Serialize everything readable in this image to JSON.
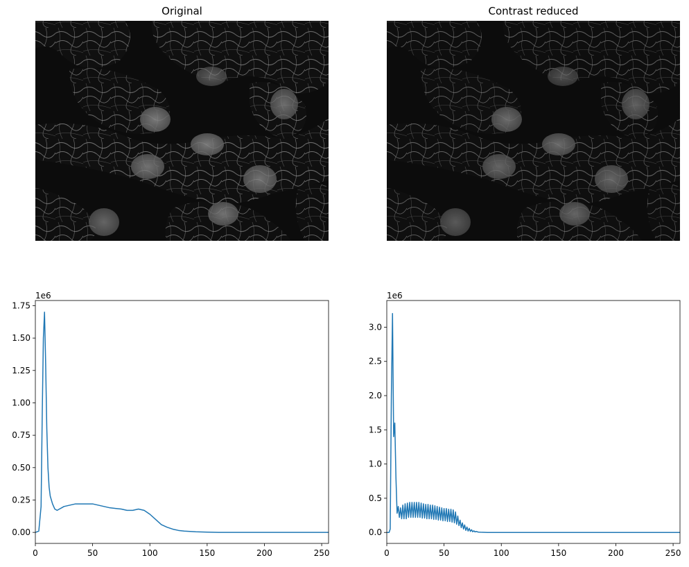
{
  "panels": {
    "left_title": "Original",
    "right_title": "Contrast reduced"
  },
  "colors": {
    "series": "#1f77b4",
    "axis": "#000000",
    "image_background": "#0c0c0c",
    "image_texture": "#d8d8d8"
  },
  "icons": {
    "left_image": "fluorescence-microscopy-cells-grayscale",
    "right_image": "fluorescence-microscopy-cells-grayscale-contrast-reduced"
  },
  "chart_data": [
    {
      "type": "line",
      "offset_text": "1e6",
      "xlim": [
        0,
        256
      ],
      "ylim": [
        -0.085,
        1.79
      ],
      "xticks": [
        0,
        50,
        100,
        150,
        200,
        250
      ],
      "xtick_labels": [
        "0",
        "50",
        "100",
        "150",
        "200",
        "250"
      ],
      "yticks": [
        0.0,
        0.25,
        0.5,
        0.75,
        1.0,
        1.25,
        1.5,
        1.75
      ],
      "ytick_labels": [
        "0.00",
        "0.25",
        "0.50",
        "0.75",
        "1.00",
        "1.25",
        "1.50",
        "1.75"
      ],
      "grid": false,
      "series": [
        {
          "x": [
            0,
            3,
            5,
            6,
            7,
            8,
            9,
            10,
            11,
            12,
            13,
            15,
            17,
            19,
            21,
            23,
            25,
            30,
            35,
            40,
            45,
            50,
            55,
            60,
            65,
            70,
            75,
            80,
            85,
            90,
            95,
            100,
            105,
            110,
            115,
            120,
            125,
            130,
            140,
            150,
            160,
            180,
            200,
            220,
            256
          ],
          "y": [
            0.0,
            0.01,
            0.2,
            0.9,
            1.5,
            1.7,
            1.3,
            0.8,
            0.5,
            0.35,
            0.28,
            0.22,
            0.18,
            0.17,
            0.18,
            0.19,
            0.2,
            0.21,
            0.22,
            0.22,
            0.22,
            0.22,
            0.21,
            0.2,
            0.19,
            0.185,
            0.18,
            0.17,
            0.17,
            0.18,
            0.17,
            0.14,
            0.1,
            0.06,
            0.04,
            0.025,
            0.015,
            0.01,
            0.005,
            0.002,
            0.0,
            0.0,
            0.0,
            0.0,
            0.0
          ]
        }
      ]
    },
    {
      "type": "line",
      "offset_text": "1e6",
      "xlim": [
        0,
        256
      ],
      "ylim": [
        -0.16,
        3.39
      ],
      "xticks": [
        0,
        50,
        100,
        150,
        200,
        250
      ],
      "xtick_labels": [
        "0",
        "50",
        "100",
        "150",
        "200",
        "250"
      ],
      "yticks": [
        0.0,
        0.5,
        1.0,
        1.5,
        2.0,
        2.5,
        3.0
      ],
      "ytick_labels": [
        "0.0",
        "0.5",
        "1.0",
        "1.5",
        "2.0",
        "2.5",
        "3.0"
      ],
      "grid": false,
      "series": [
        {
          "x": [
            0,
            2,
            3,
            4,
            5,
            6,
            7,
            8,
            9,
            10,
            11,
            12,
            13,
            14,
            15,
            16,
            17,
            18,
            19,
            20,
            21,
            22,
            23,
            24,
            25,
            26,
            27,
            28,
            29,
            30,
            31,
            32,
            33,
            34,
            35,
            36,
            37,
            38,
            39,
            40,
            41,
            42,
            43,
            44,
            45,
            46,
            47,
            48,
            49,
            50,
            51,
            52,
            53,
            54,
            55,
            56,
            57,
            58,
            59,
            60,
            61,
            62,
            63,
            64,
            65,
            66,
            67,
            68,
            69,
            70,
            71,
            72,
            73,
            74,
            75,
            76,
            77,
            78,
            80,
            82,
            84,
            86,
            88,
            90,
            95,
            100,
            120,
            150,
            200,
            256
          ],
          "y": [
            0.0,
            0.0,
            0.05,
            2.0,
            3.2,
            1.4,
            1.6,
            0.8,
            0.28,
            0.38,
            0.22,
            0.36,
            0.2,
            0.4,
            0.2,
            0.42,
            0.2,
            0.43,
            0.22,
            0.44,
            0.22,
            0.44,
            0.22,
            0.44,
            0.22,
            0.44,
            0.22,
            0.44,
            0.22,
            0.43,
            0.21,
            0.42,
            0.21,
            0.41,
            0.2,
            0.41,
            0.2,
            0.4,
            0.2,
            0.4,
            0.19,
            0.39,
            0.19,
            0.38,
            0.18,
            0.37,
            0.18,
            0.36,
            0.17,
            0.35,
            0.17,
            0.35,
            0.16,
            0.34,
            0.16,
            0.34,
            0.15,
            0.33,
            0.14,
            0.3,
            0.12,
            0.24,
            0.1,
            0.18,
            0.07,
            0.14,
            0.05,
            0.11,
            0.03,
            0.08,
            0.02,
            0.06,
            0.015,
            0.04,
            0.01,
            0.025,
            0.008,
            0.015,
            0.005,
            0.003,
            0.002,
            0.001,
            0.0,
            0.0,
            0.0,
            0.0,
            0.0,
            0.0,
            0.0,
            0.0
          ]
        }
      ]
    }
  ]
}
